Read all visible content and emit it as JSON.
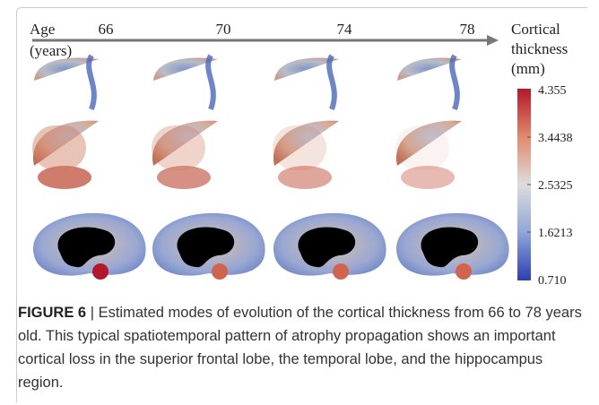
{
  "figure": {
    "axis_label": "Age",
    "axis_unit": "(years)",
    "ages": [
      "66",
      "70",
      "74",
      "78"
    ],
    "colorbar": {
      "title": [
        "Cortical",
        "thickness",
        "(mm)"
      ],
      "ticks": [
        "4.355",
        "3.4438",
        "2.5325",
        "1.6213",
        "0.710"
      ]
    }
  },
  "caption": {
    "label": "FIGURE 6",
    "text": "| Estimated modes of evolution of the cortical thickness from 66 to 78 years old. This typical spatiotemporal pattern of atrophy propagation shows an important cortical loss in the superior frontal lobe, the temporal lobe, and the hippocampus region."
  }
}
